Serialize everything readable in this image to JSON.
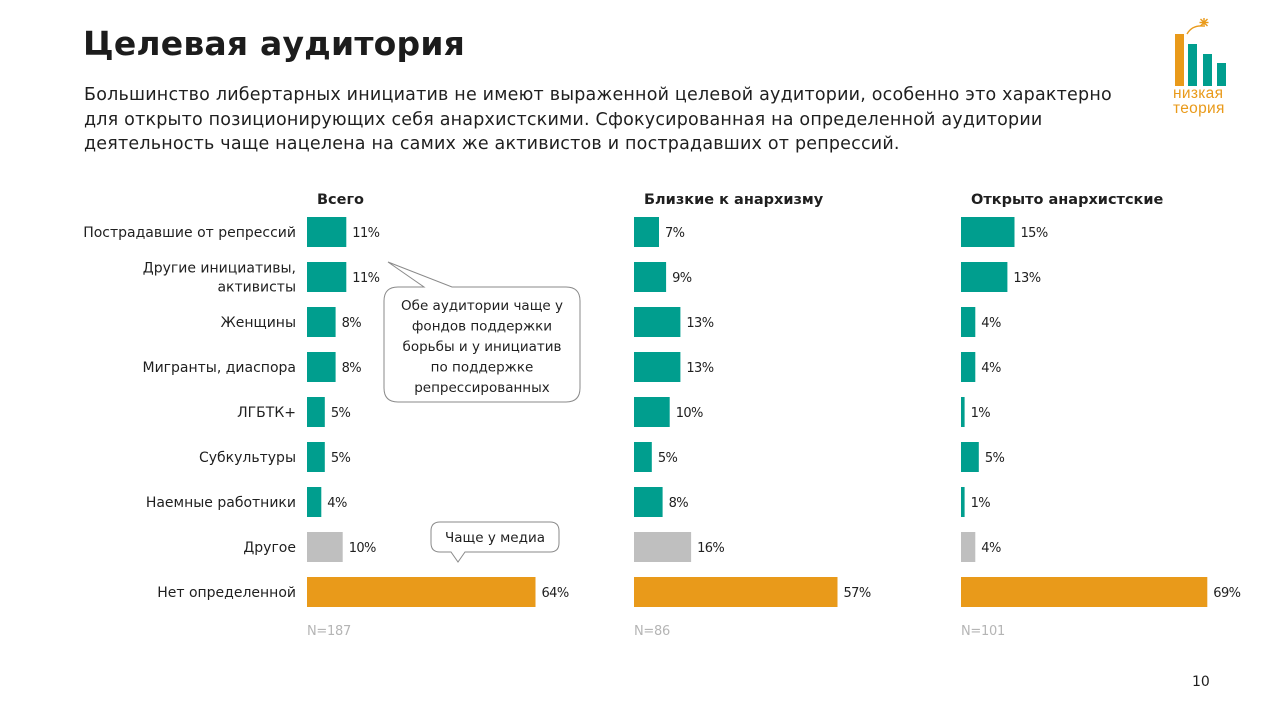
{
  "header": {
    "title": "Целевая аудитория",
    "subtitle": "Большинство либертарных инициатив не имеют выраженной целевой аудитории, особенно это характерно для открыто позиционирующих себя анархистскими. Сфокусированная на определенной аудитории деятельность чаще нацелена на самих же активистов и пострадавших от репрессий."
  },
  "logo": {
    "line1": "низкая",
    "line2": "теория",
    "colors": {
      "orange": "#e99a1a",
      "teal": "#009e8e"
    }
  },
  "page_number": "10",
  "colors": {
    "teal": "#009e8e",
    "gray": "#bfbfbf",
    "orange": "#e99a1a"
  },
  "chart_data": {
    "type": "bar",
    "orientation": "horizontal",
    "categories": [
      [
        "Пострадавшие от репрессий"
      ],
      [
        "Другие инициативы,",
        "активисты"
      ],
      [
        "Женщины"
      ],
      [
        "Мигранты, диаспора"
      ],
      [
        "ЛГБТК+"
      ],
      [
        "Субкультуры"
      ],
      [
        "Наемные работники"
      ],
      [
        "Другое"
      ],
      [
        "Нет определенной"
      ]
    ],
    "category_color_keys": [
      "teal",
      "teal",
      "teal",
      "teal",
      "teal",
      "teal",
      "teal",
      "gray",
      "orange"
    ],
    "value_unit": "%",
    "series": [
      {
        "name": "Всего",
        "n": "N=187",
        "values": [
          11,
          11,
          8,
          8,
          5,
          5,
          4,
          10,
          64
        ]
      },
      {
        "name": "Близкие к анархизму",
        "n": "N=86",
        "values": [
          7,
          9,
          13,
          13,
          10,
          5,
          8,
          16,
          57
        ]
      },
      {
        "name": "Открыто анархистские",
        "n": "N=101",
        "values": [
          15,
          13,
          4,
          4,
          1,
          5,
          1,
          4,
          69
        ]
      }
    ],
    "annotations": [
      {
        "text": [
          "Обе аудитории чаще у",
          "фондов поддержки",
          "борьбы и у инициатив",
          "по поддержке",
          "репрессированных"
        ]
      },
      {
        "text": [
          "Чаще у медиа"
        ]
      }
    ]
  }
}
